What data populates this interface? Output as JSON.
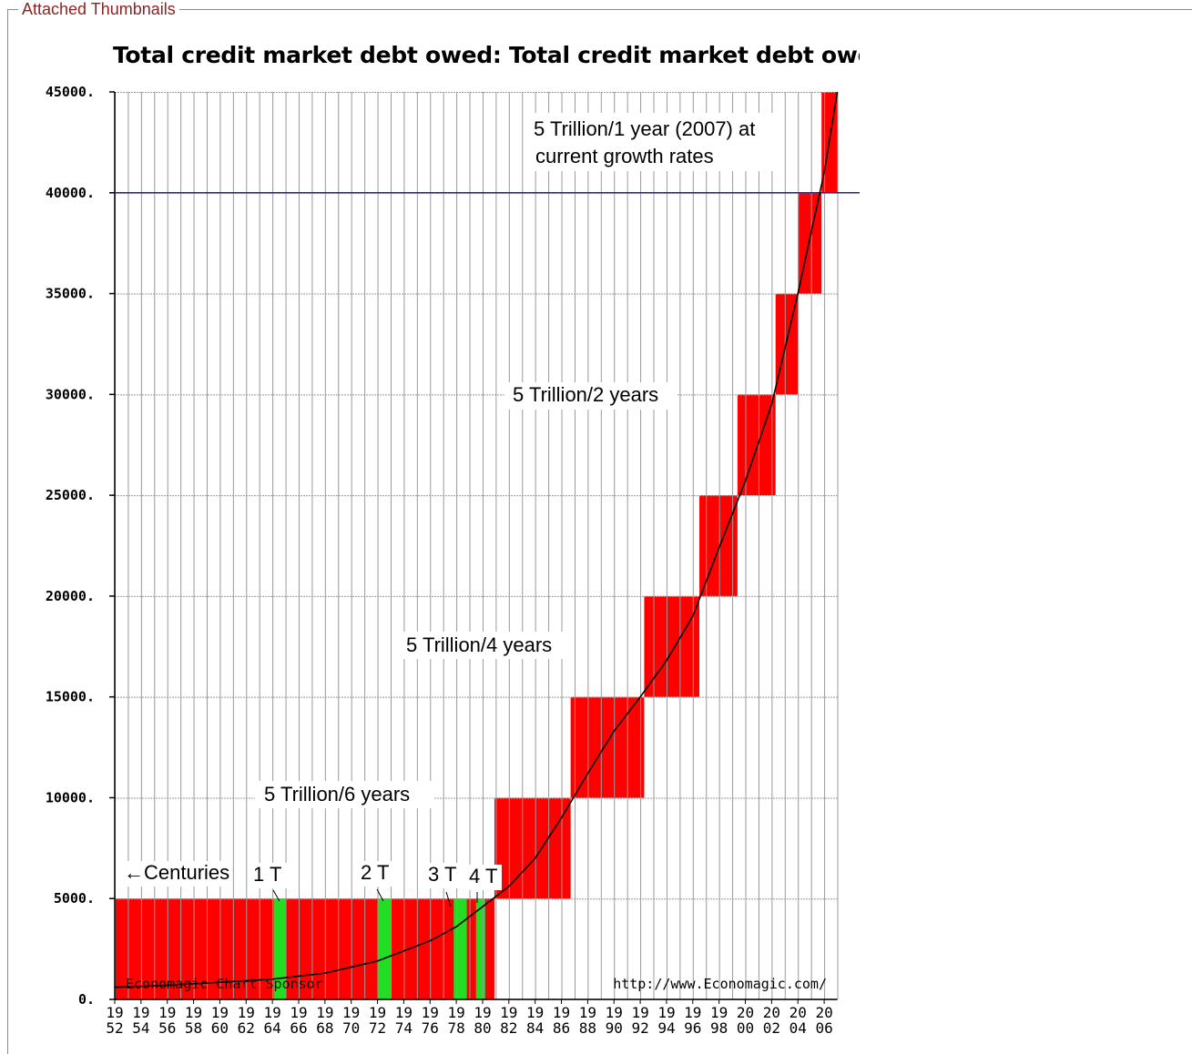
{
  "fieldset": {
    "legend": "Attached Thumbnails"
  },
  "chart_data": {
    "type": "line",
    "title": "Total credit market debt owed: Total credit market debt owed by",
    "xlabel": "",
    "ylabel": "",
    "xlim": [
      1952,
      2007
    ],
    "ylim": [
      0,
      45000
    ],
    "y_ticks": [
      "0.",
      "5000.",
      "10000.",
      "15000.",
      "20000.",
      "25000.",
      "30000.",
      "35000.",
      "40000.",
      "45000."
    ],
    "x_ticks_top": [
      "19",
      "19",
      "19",
      "19",
      "19",
      "19",
      "19",
      "19",
      "19",
      "19",
      "19",
      "19",
      "19",
      "19",
      "19",
      "19",
      "19",
      "19",
      "19",
      "19",
      "19",
      "19",
      "19",
      "19",
      "20",
      "20",
      "20",
      "20"
    ],
    "x_ticks_bottom": [
      "52",
      "54",
      "56",
      "58",
      "60",
      "62",
      "64",
      "66",
      "68",
      "70",
      "72",
      "74",
      "76",
      "78",
      "80",
      "82",
      "84",
      "86",
      "88",
      "90",
      "92",
      "94",
      "96",
      "98",
      "00",
      "02",
      "04",
      "06"
    ],
    "grid": true,
    "reference_line": {
      "y": 40000,
      "color": "#1f1fbf"
    },
    "series": [
      {
        "x": [
          1952,
          1956,
          1960,
          1964,
          1968,
          1972,
          1974,
          1976,
          1978,
          1980,
          1982,
          1984,
          1986,
          1988,
          1990,
          1992,
          1994,
          1996,
          1998,
          2000,
          2002,
          2004,
          2006,
          2007
        ],
        "y": [
          600,
          700,
          850,
          1000,
          1300,
          1900,
          2400,
          2900,
          3600,
          4600,
          5600,
          7000,
          9000,
          11200,
          13300,
          15000,
          16800,
          19000,
          22400,
          25700,
          29500,
          35000,
          41000,
          45000
        ]
      }
    ],
    "steps": [
      {
        "x0": 1952,
        "x1": 1980.9,
        "y0": 0,
        "y1": 5000,
        "color": "#ff0000"
      },
      {
        "x0": 1980.9,
        "x1": 1986.7,
        "y0": 5000,
        "y1": 10000,
        "color": "#ff0000"
      },
      {
        "x0": 1986.7,
        "x1": 1992.3,
        "y0": 10000,
        "y1": 15000,
        "color": "#ff0000"
      },
      {
        "x0": 1992.3,
        "x1": 1996.5,
        "y0": 15000,
        "y1": 20000,
        "color": "#ff0000"
      },
      {
        "x0": 1996.5,
        "x1": 1999.4,
        "y0": 20000,
        "y1": 25000,
        "color": "#ff0000"
      },
      {
        "x0": 1999.4,
        "x1": 2002.3,
        "y0": 25000,
        "y1": 30000,
        "color": "#ff0000"
      },
      {
        "x0": 2002.3,
        "x1": 2004.0,
        "y0": 30000,
        "y1": 35000,
        "color": "#ff0000"
      },
      {
        "x0": 2004.0,
        "x1": 2005.8,
        "y0": 35000,
        "y1": 40000,
        "color": "#ff0000"
      },
      {
        "x0": 2005.8,
        "x1": 2007.0,
        "y0": 40000,
        "y1": 45000,
        "color": "#ff0000"
      }
    ],
    "markers": [
      {
        "x0": 1964.1,
        "x1": 1965.0,
        "color": "#22dd22"
      },
      {
        "x0": 1972.0,
        "x1": 1973.0,
        "color": "#22dd22"
      },
      {
        "x0": 1977.8,
        "x1": 1978.8,
        "color": "#22dd22"
      },
      {
        "x0": 1979.5,
        "x1": 1980.2,
        "color": "#22dd22"
      }
    ],
    "annotations": [
      {
        "id": "one-year",
        "lines": [
          "5 Trillion/1 year (2007) at",
          "current growth rates"
        ]
      },
      {
        "id": "two-years",
        "lines": [
          "5 Trillion/2 years"
        ]
      },
      {
        "id": "four-years",
        "lines": [
          "5 Trillion/4 years"
        ]
      },
      {
        "id": "six-years",
        "lines": [
          "5 Trillion/6 years"
        ]
      },
      {
        "id": "centuries",
        "lines": [
          "←Centuries"
        ]
      },
      {
        "id": "t1",
        "lines": [
          "1 T"
        ]
      },
      {
        "id": "t2",
        "lines": [
          "2 T"
        ]
      },
      {
        "id": "t3",
        "lines": [
          "3 T"
        ]
      },
      {
        "id": "t4",
        "lines": [
          "4 T"
        ]
      }
    ],
    "watermarks": {
      "left": "Economagic Chart Sponsor",
      "right": "http://www.Economagic.com/"
    },
    "colors": {
      "step": "#ff0000",
      "marker": "#22dd22",
      "line": "#000000",
      "reference": "#1f1fbf"
    }
  }
}
